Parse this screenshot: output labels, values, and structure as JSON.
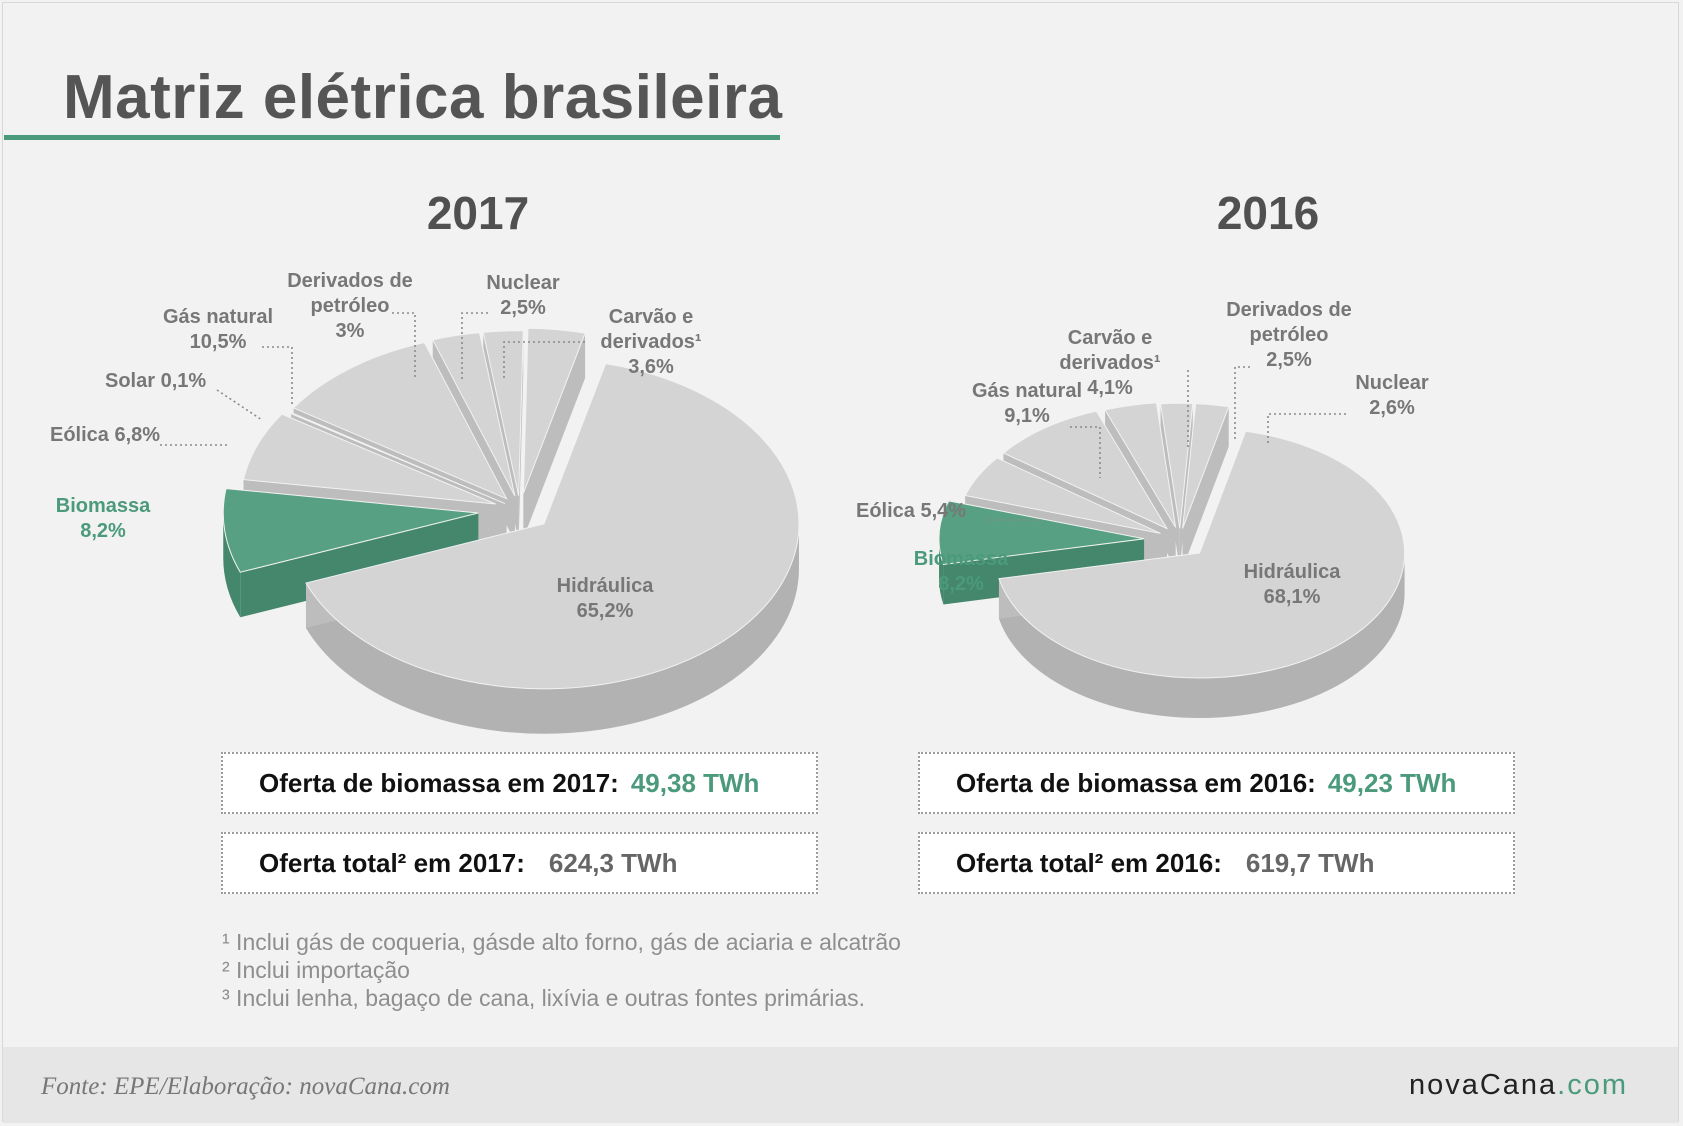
{
  "title": "Matriz elétrica brasileira",
  "colors": {
    "accent": "#4b9a7c",
    "slice_top": "#d4d4d4",
    "slice_side": "#b2b2b2",
    "bio_top": "#57a084",
    "bio_side": "#44876d",
    "label_grey": "#777777"
  },
  "chart_data": [
    {
      "type": "pie",
      "title": "2017",
      "slices": [
        {
          "label": "Hidráulica",
          "value": "65,2%",
          "pct": 65.2
        },
        {
          "label": "Biomassa",
          "value": "8,2%",
          "pct": 8.2
        },
        {
          "label": "Eólica",
          "value": "6,8%",
          "pct": 6.8
        },
        {
          "label": "Solar",
          "value": "0,1%",
          "pct": 0.1
        },
        {
          "label": "Gás natural",
          "value": "10,5%",
          "pct": 10.5
        },
        {
          "label": "Derivados de petróleo",
          "value": "3%",
          "pct": 3.0
        },
        {
          "label": "Nuclear",
          "value": "2,5%",
          "pct": 2.5
        },
        {
          "label": "Carvão e derivados¹",
          "value": "3,6%",
          "pct": 3.6
        }
      ]
    },
    {
      "type": "pie",
      "title": "2016",
      "slices": [
        {
          "label": "Hidráulica",
          "value": "68,1%",
          "pct": 68.1
        },
        {
          "label": "Biomassa",
          "value": "8,2%",
          "pct": 8.2
        },
        {
          "label": "Eólica",
          "value": "5,4%",
          "pct": 5.4
        },
        {
          "label": "Gás natural",
          "value": "9,1%",
          "pct": 9.1
        },
        {
          "label": "Carvão e derivados¹",
          "value": "4,1%",
          "pct": 4.1
        },
        {
          "label": "Derivados de petróleo",
          "value": "2,5%",
          "pct": 2.5
        },
        {
          "label": "Nuclear",
          "value": "2,6%",
          "pct": 2.6
        }
      ]
    }
  ],
  "boxes": {
    "bio2017_label": "Oferta de biomassa em 2017:",
    "bio2017_value": "49,38 TWh",
    "total2017_label": "Oferta total² em 2017:",
    "total2017_value": "624,3 TWh",
    "bio2016_label": "Oferta de biomassa em 2016:",
    "bio2016_value": "49,23 TWh",
    "total2016_label": "Oferta total² em 2016:",
    "total2016_value": "619,7 TWh"
  },
  "notes": [
    "¹ Inclui gás de coqueria, gásde alto forno, gás de aciaria e alcatrão",
    "² Inclui importação",
    "³ Inclui lenha, bagaço de cana, lixívia e outras fontes primárias."
  ],
  "footer": {
    "source": "Fonte: EPE/Elaboração: novaCana.com",
    "logo_main": "novaCana",
    "logo_suffix": ".com"
  }
}
